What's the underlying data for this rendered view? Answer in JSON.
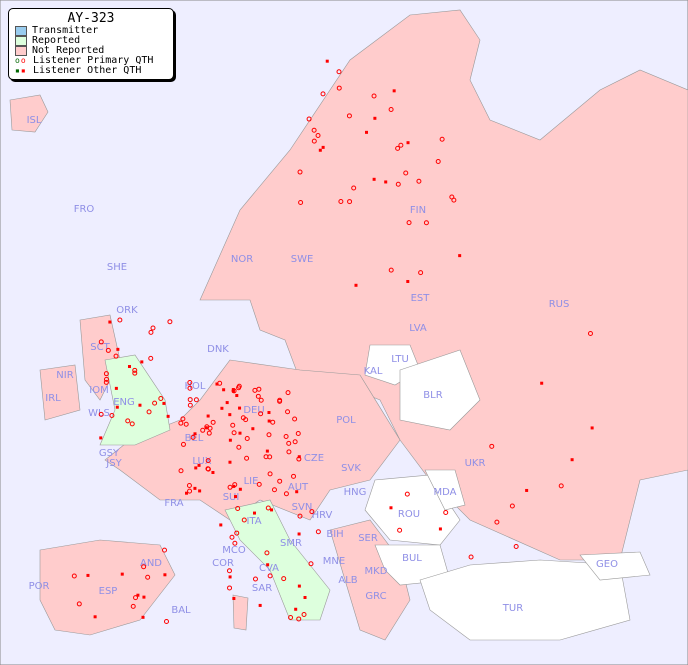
{
  "legend": {
    "title": "AY-323",
    "items": [
      {
        "label": "Transmitter",
        "color": "#99ccee"
      },
      {
        "label": "Reported",
        "color": "#ddffdd"
      },
      {
        "label": "Not Reported",
        "color": "#ffcccc"
      },
      {
        "label": "Listener Primary QTH",
        "marker": "circle"
      },
      {
        "label": "Listener Other QTH",
        "marker": "square"
      }
    ]
  },
  "colors": {
    "sea": "#eeeeff",
    "not_reported": "#ffcccc",
    "reported": "#ddffdd",
    "no_data": "#ffffff",
    "listener": "#ff0000",
    "label": "#8f8fe6"
  },
  "countries": [
    "ISL",
    "FRO",
    "SHE",
    "ORK",
    "NOR",
    "SWE",
    "FIN",
    "EST",
    "RUS",
    "LVA",
    "LTU",
    "KAL",
    "BLR",
    "DNK",
    "HOL",
    "SCT",
    "NIR",
    "IOM",
    "IRL",
    "WLS",
    "ENG",
    "DEU",
    "POL",
    "BEL",
    "LUX",
    "GSY",
    "JSY",
    "CZE",
    "SVK",
    "UKR",
    "MDA",
    "FRA",
    "SUI",
    "LIE",
    "AUT",
    "HNG",
    "SVN",
    "HRV",
    "ROU",
    "ITA",
    "SMR",
    "BIH",
    "SER",
    "MCO",
    "COR",
    "CVA",
    "MNE",
    "BUL",
    "GEO",
    "ALB",
    "MKD",
    "AND",
    "POR",
    "ESP",
    "SAR",
    "BAL",
    "GRC",
    "TUR"
  ]
}
